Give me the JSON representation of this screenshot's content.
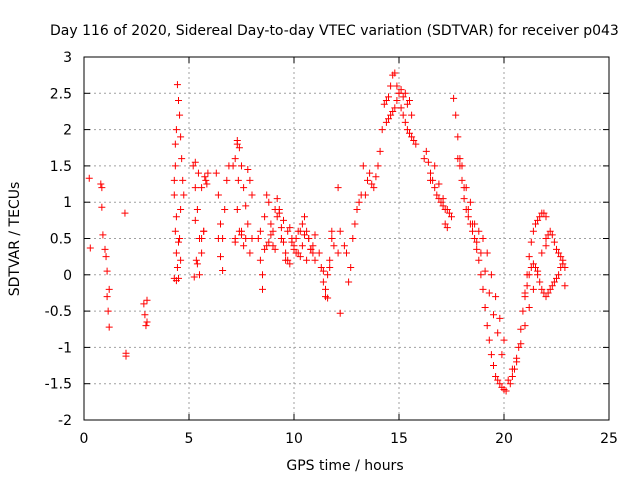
{
  "chart_data": {
    "type": "scatter",
    "title": "Day 116 of 2020, Sidereal Day-to-day VTEC variation (SDTVAR) for receiver p043",
    "xlabel": "GPS time / hours",
    "ylabel": "SDTVAR / TECUs",
    "xlim": [
      0,
      25
    ],
    "ylim": [
      -2,
      3
    ],
    "x_ticks": [
      0,
      5,
      10,
      15,
      20,
      25
    ],
    "x_tick_labels": [
      "0",
      "5",
      "10",
      "15",
      "20",
      "25"
    ],
    "y_ticks": [
      -2,
      -1.5,
      -1,
      -0.5,
      0,
      0.5,
      1,
      1.5,
      2,
      2.5,
      3
    ],
    "y_tick_labels": [
      "-2",
      "-1.5",
      "-1",
      "-0.5",
      "0",
      "0.5",
      "1",
      "1.5",
      "2",
      "2.5",
      "3"
    ],
    "grid": true,
    "marker": "+",
    "color": "#ff0000",
    "series": [
      {
        "name": "SDTVAR",
        "x": [
          0.25,
          0.3,
          0.8,
          0.85,
          0.85,
          0.9,
          1.0,
          1.05,
          1.1,
          1.1,
          1.15,
          1.2,
          1.2,
          1.95,
          2.0,
          2.0,
          2.85,
          2.9,
          2.95,
          3.0,
          3.0,
          4.3,
          4.35,
          4.4,
          4.45,
          4.5,
          4.55,
          4.6,
          4.65,
          4.7,
          4.75,
          4.35,
          4.4,
          4.45,
          4.5,
          4.55,
          4.6,
          4.3,
          4.4,
          4.5,
          4.6,
          4.4,
          4.3,
          4.35,
          5.2,
          5.3,
          5.4,
          5.5,
          5.6,
          5.7,
          5.8,
          5.9,
          5.3,
          5.45,
          5.6,
          5.75,
          5.85,
          5.4,
          5.5,
          5.6,
          5.7,
          5.3,
          5.35,
          5.25,
          6.3,
          6.4,
          6.5,
          6.6,
          6.7,
          6.8,
          6.9,
          6.5,
          6.6,
          6.4,
          7.1,
          7.2,
          7.3,
          7.4,
          7.5,
          7.6,
          7.7,
          7.8,
          7.9,
          8.0,
          7.4,
          7.5,
          7.2,
          7.3,
          7.35,
          7.3,
          7.2,
          7.5,
          7.6,
          7.7,
          7.8,
          7.9,
          8.0,
          8.3,
          8.4,
          8.5,
          8.6,
          8.7,
          8.8,
          8.9,
          9.0,
          9.1,
          9.2,
          9.3,
          9.4,
          9.5,
          9.6,
          9.7,
          9.8,
          9.9,
          10.0,
          10.1,
          10.2,
          10.3,
          10.4,
          10.5,
          10.6,
          10.7,
          10.8,
          10.9,
          11.0,
          8.5,
          8.7,
          8.9,
          9.1,
          9.3,
          9.5,
          9.7,
          9.9,
          10.1,
          10.3,
          10.5,
          10.7,
          10.9,
          8.4,
          8.6,
          8.8,
          9.0,
          9.2,
          9.4,
          9.6,
          9.8,
          10.0,
          10.2,
          10.4,
          10.6,
          10.8,
          11.0,
          11.2,
          11.3,
          11.4,
          11.5,
          11.6,
          11.7,
          11.8,
          11.9,
          11.5,
          11.6,
          11.7,
          11.8,
          11.4,
          12.1,
          12.2,
          12.2,
          12.1,
          12.4,
          12.5,
          12.6,
          12.7,
          12.8,
          12.9,
          13.0,
          13.1,
          13.2,
          13.3,
          13.4,
          13.5,
          13.6,
          13.7,
          13.8,
          13.9,
          14.0,
          14.1,
          14.2,
          14.3,
          14.4,
          14.5,
          14.6,
          14.7,
          14.8,
          14.9,
          15.0,
          15.1,
          15.2,
          15.3,
          15.4,
          15.5,
          15.6,
          15.7,
          15.8,
          14.4,
          14.6,
          14.8,
          15.0,
          15.2,
          15.4,
          15.6,
          14.5,
          14.7,
          14.9,
          15.1,
          15.3,
          15.5,
          16.2,
          16.3,
          16.4,
          16.5,
          16.6,
          16.7,
          16.8,
          16.9,
          17.0,
          17.1,
          17.2,
          17.3,
          17.4,
          17.5,
          16.5,
          16.7,
          16.9,
          17.1,
          17.2,
          17.3,
          17.6,
          17.7,
          17.8,
          17.9,
          18.0,
          18.1,
          18.2,
          18.3,
          18.4,
          18.5,
          18.6,
          18.7,
          18.8,
          18.9,
          19.0,
          19.1,
          19.2,
          19.3,
          19.4,
          19.5,
          19.6,
          19.7,
          19.8,
          19.9,
          20.0,
          20.1,
          20.2,
          17.8,
          18.0,
          18.2,
          18.4,
          18.6,
          18.8,
          19.0,
          19.2,
          19.4,
          19.6,
          19.8,
          20.0,
          17.9,
          18.1,
          18.3,
          18.5,
          18.7,
          18.9,
          19.1,
          19.3,
          19.5,
          19.7,
          19.9,
          20.3,
          20.4,
          20.5,
          20.6,
          20.7,
          20.8,
          20.9,
          21.0,
          21.1,
          21.2,
          21.3,
          21.4,
          21.5,
          21.6,
          21.7,
          21.8,
          21.9,
          22.0,
          20.4,
          20.6,
          20.8,
          21.0,
          21.2,
          21.4,
          21.6,
          21.8,
          22.0,
          21.0,
          21.1,
          21.2,
          21.3,
          21.4,
          21.5,
          21.6,
          21.7,
          21.8,
          21.9,
          22.0,
          22.1,
          22.2,
          22.3,
          22.4,
          22.5,
          22.6,
          22.7,
          22.8,
          22.9,
          22.0,
          22.1,
          22.2,
          22.3,
          22.4,
          22.5,
          22.6,
          22.7,
          22.8,
          22.9
        ],
        "y": [
          1.33,
          0.37,
          1.25,
          1.2,
          0.93,
          0.55,
          0.35,
          0.25,
          0.05,
          -0.3,
          -0.5,
          -0.72,
          -0.2,
          0.85,
          -1.08,
          -1.12,
          -0.4,
          -0.55,
          -0.7,
          -0.65,
          -0.35,
          1.1,
          1.5,
          2.0,
          2.62,
          2.4,
          2.2,
          1.9,
          1.6,
          1.3,
          1.1,
          0.6,
          0.3,
          0.1,
          -0.05,
          0.5,
          0.9,
          1.3,
          0.8,
          0.45,
          0.2,
          -0.08,
          -0.05,
          1.8,
          1.5,
          1.2,
          0.9,
          0.5,
          0.3,
          0.6,
          1.3,
          1.4,
          1.55,
          1.4,
          1.2,
          1.35,
          1.25,
          0.15,
          0.0,
          0.5,
          0.6,
          0.75,
          0.2,
          -0.03,
          1.4,
          1.1,
          0.7,
          0.5,
          0.9,
          1.3,
          1.5,
          0.25,
          0.06,
          0.5,
          1.5,
          1.6,
          1.8,
          1.75,
          1.5,
          1.2,
          0.95,
          1.45,
          1.3,
          1.1,
          0.6,
          0.55,
          0.5,
          0.9,
          1.3,
          1.85,
          0.45,
          0.6,
          0.4,
          0.5,
          0.7,
          0.3,
          0.5,
          0.5,
          0.2,
          0.0,
          0.8,
          1.1,
          1.0,
          0.7,
          0.4,
          0.9,
          1.05,
          0.85,
          0.65,
          0.45,
          0.3,
          0.2,
          0.65,
          0.5,
          0.4,
          0.5,
          0.3,
          0.6,
          0.7,
          0.8,
          0.6,
          0.5,
          0.35,
          0.4,
          0.2,
          -0.2,
          0.4,
          0.55,
          0.35,
          0.9,
          0.75,
          0.6,
          0.45,
          0.3,
          0.25,
          0.55,
          0.5,
          0.3,
          0.6,
          0.35,
          0.45,
          0.6,
          0.8,
          0.5,
          0.2,
          0.15,
          0.35,
          0.6,
          0.4,
          0.2,
          0.35,
          0.55,
          0.3,
          0.1,
          -0.1,
          -0.3,
          0.0,
          0.2,
          0.5,
          0.4,
          -0.2,
          -0.32,
          0.1,
          0.6,
          0.05,
          1.2,
          -0.53,
          0.6,
          0.3,
          0.4,
          0.3,
          -0.1,
          0.1,
          0.5,
          0.7,
          0.9,
          1.0,
          1.1,
          1.5,
          1.1,
          1.3,
          1.4,
          1.25,
          1.2,
          1.35,
          1.5,
          1.7,
          2.0,
          2.35,
          2.4,
          2.45,
          2.6,
          2.75,
          2.78,
          2.6,
          2.5,
          2.3,
          2.2,
          2.1,
          2.0,
          1.95,
          1.9,
          1.85,
          1.8,
          2.1,
          2.2,
          2.3,
          2.5,
          2.45,
          2.35,
          2.2,
          2.15,
          2.25,
          2.4,
          2.55,
          2.5,
          2.4,
          1.6,
          1.7,
          1.55,
          1.4,
          1.3,
          1.2,
          1.1,
          1.05,
          1.0,
          0.95,
          0.9,
          0.9,
          0.85,
          0.8,
          1.3,
          1.5,
          1.25,
          1.05,
          0.7,
          0.65,
          2.43,
          2.2,
          1.9,
          1.6,
          1.3,
          1.05,
          0.9,
          0.8,
          0.7,
          0.6,
          0.5,
          0.35,
          0.2,
          0.0,
          -0.2,
          -0.45,
          -0.7,
          -0.9,
          -1.1,
          -1.25,
          -1.4,
          -1.45,
          -1.5,
          -1.55,
          -1.58,
          -1.6,
          -1.45,
          1.6,
          1.5,
          1.2,
          1.0,
          0.7,
          0.6,
          0.5,
          0.3,
          0.0,
          -0.3,
          -0.6,
          -0.9,
          1.5,
          1.2,
          0.9,
          0.7,
          0.45,
          0.3,
          0.05,
          -0.25,
          -0.55,
          -0.8,
          -1.1,
          -1.5,
          -1.4,
          -1.3,
          -1.2,
          -1.0,
          -0.75,
          -0.5,
          -0.25,
          0.0,
          0.25,
          0.45,
          0.6,
          0.7,
          0.75,
          0.8,
          0.85,
          0.85,
          0.8,
          -1.3,
          -1.15,
          -0.95,
          -0.7,
          -0.45,
          -0.2,
          0.05,
          0.3,
          0.5,
          -0.3,
          -0.15,
          0.0,
          0.1,
          0.15,
          0.1,
          0.0,
          -0.1,
          -0.2,
          -0.25,
          -0.3,
          -0.25,
          -0.2,
          -0.15,
          -0.1,
          -0.05,
          0.0,
          0.1,
          0.15,
          0.1,
          0.4,
          0.55,
          0.6,
          0.55,
          0.45,
          0.35,
          0.3,
          0.25,
          0.2,
          -0.15
        ]
      }
    ]
  }
}
